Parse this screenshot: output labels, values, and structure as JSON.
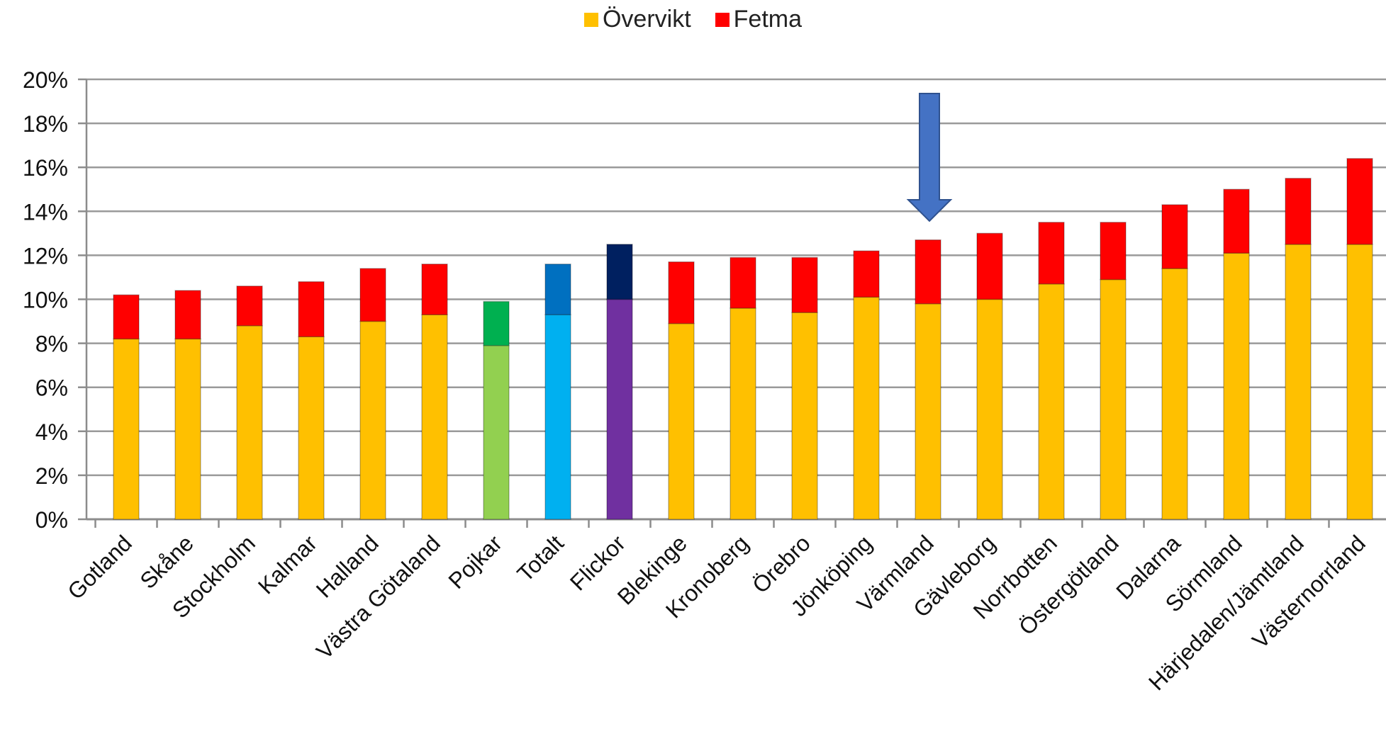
{
  "chart_data": {
    "type": "bar",
    "stacked": true,
    "categories": [
      "Gotland",
      "Skåne",
      "Stockholm",
      "Kalmar",
      "Halland",
      "Västra Götaland",
      "Pojkar",
      "Totalt",
      "Flickor",
      "Blekinge",
      "Kronoberg",
      "Örebro",
      "Jönköping",
      "Värmland",
      "Gävleborg",
      "Norrbotten",
      "Östergötland",
      "Dalarna",
      "Sörmland",
      "Härjedalen/Jämtland",
      "Västernorrland"
    ],
    "series": [
      {
        "name": "Övervikt",
        "color": "#FFC000",
        "values": [
          8.2,
          8.2,
          8.8,
          8.3,
          9.0,
          9.3,
          7.9,
          9.3,
          10.0,
          8.9,
          9.6,
          9.4,
          10.1,
          9.8,
          10.0,
          10.7,
          10.9,
          11.4,
          12.1,
          12.5,
          12.5
        ]
      },
      {
        "name": "Fetma",
        "color": "#FF0000",
        "values": [
          2.0,
          2.2,
          1.8,
          2.5,
          2.4,
          2.3,
          2.0,
          2.3,
          2.5,
          2.8,
          2.3,
          2.5,
          2.1,
          2.9,
          3.0,
          2.8,
          2.6,
          2.9,
          2.9,
          3.0,
          3.9
        ]
      }
    ],
    "special_colors": {
      "Pojkar": [
        "#92D050",
        "#00B050"
      ],
      "Totalt": [
        "#00B0F0",
        "#0070C0"
      ],
      "Flickor": [
        "#7030A0",
        "#002060"
      ]
    },
    "highlight": {
      "category": "Värmland",
      "marker": "down-arrow",
      "color": "#4472C4"
    },
    "y_tick_labels": [
      "0%",
      "2%",
      "4%",
      "6%",
      "8%",
      "10%",
      "12%",
      "14%",
      "16%",
      "18%",
      "20%"
    ],
    "ylim": [
      0,
      20
    ],
    "grid": true,
    "legend_position": "top-center",
    "title": "",
    "xlabel": "",
    "ylabel": ""
  }
}
